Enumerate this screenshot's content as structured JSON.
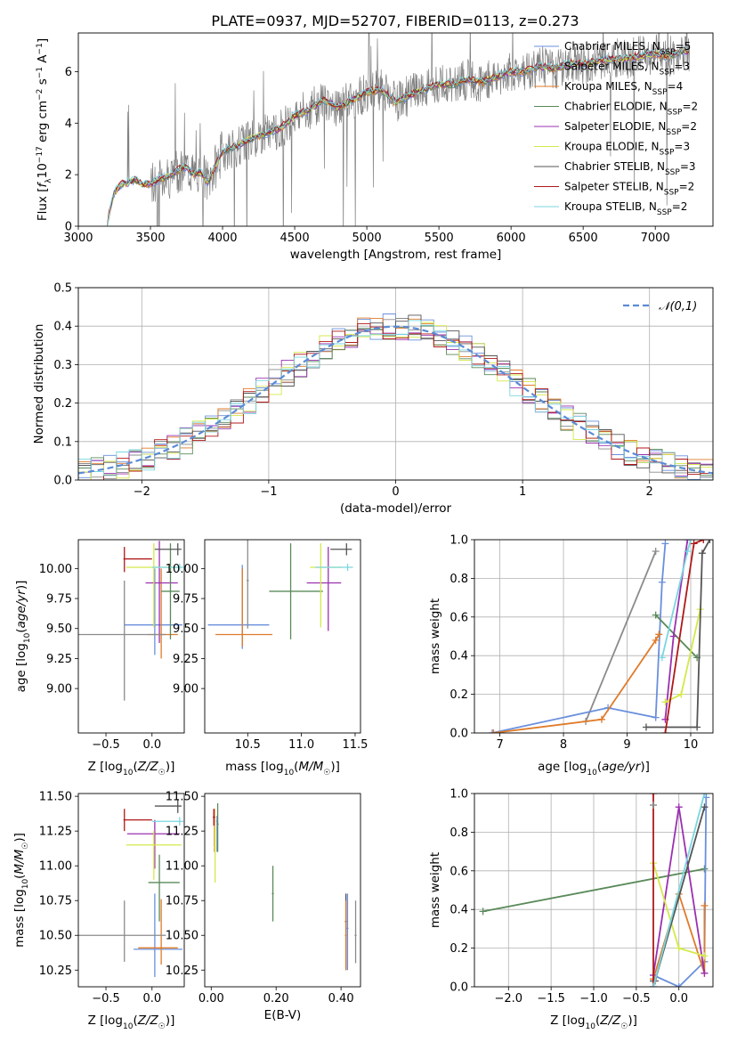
{
  "figure_title": "PLATE=0937, MJD=52707, FIBERID=0113, z=0.273",
  "models": [
    {
      "name": "Chabrier MILES",
      "nssp": "5",
      "color": "#6a8fdc"
    },
    {
      "name": "Salpeter MILES",
      "nssp": "3",
      "color": "#8b8b8b"
    },
    {
      "name": "Kroupa MILES",
      "nssp": "4",
      "color": "#e07b2a"
    },
    {
      "name": "Chabrier ELODIE",
      "nssp": "2",
      "color": "#5a8a5a"
    },
    {
      "name": "Salpeter ELODIE",
      "nssp": "2",
      "color": "#9b30b0"
    },
    {
      "name": "Kroupa ELODIE",
      "nssp": "3",
      "color": "#d4e84a"
    },
    {
      "name": "Chabrier STELIB",
      "nssp": "3",
      "color": "#555555"
    },
    {
      "name": "Salpeter STELIB",
      "nssp": "2",
      "color": "#b01818"
    },
    {
      "name": "Kroupa STELIB",
      "nssp": "2",
      "color": "#7ad6e0"
    }
  ],
  "chart_data": [
    {
      "id": "spectrum",
      "type": "line",
      "xlabel": "wavelength [Angstrom, rest frame]",
      "ylabel": "Flux [f_λ 10^-17 erg cm^-2 s^-1 A^-1]",
      "xlim": [
        3000,
        7400
      ],
      "ylim": [
        0,
        7.5
      ],
      "xticks": [
        3000,
        3500,
        4000,
        4500,
        5000,
        5500,
        6000,
        6500,
        7000
      ],
      "yticks": [
        0,
        2,
        4,
        6
      ],
      "data_color": "#808080",
      "model_curve": {
        "x": [
          3200,
          3250,
          3300,
          3350,
          3400,
          3450,
          3500,
          3550,
          3600,
          3650,
          3700,
          3750,
          3800,
          3850,
          3900,
          3950,
          4000,
          4100,
          4200,
          4300,
          4400,
          4500,
          4600,
          4700,
          4800,
          4900,
          5000,
          5100,
          5200,
          5300,
          5400,
          5500,
          5600,
          5700,
          5800,
          5900,
          6000,
          6100,
          6200,
          6300,
          6400,
          6500,
          6600,
          6700,
          6800,
          6900,
          7000,
          7100,
          7200
        ],
        "y": [
          0.2,
          1.3,
          1.65,
          1.7,
          1.8,
          1.6,
          1.65,
          1.8,
          1.9,
          2.0,
          2.2,
          2.3,
          2.0,
          2.1,
          1.7,
          2.3,
          2.9,
          3.1,
          3.4,
          3.6,
          3.8,
          4.3,
          4.5,
          4.9,
          4.6,
          4.9,
          5.2,
          5.3,
          4.8,
          5.1,
          5.3,
          5.5,
          5.5,
          5.7,
          5.6,
          5.8,
          6.0,
          6.0,
          6.2,
          6.1,
          6.3,
          6.3,
          6.4,
          6.5,
          6.5,
          6.6,
          6.7,
          6.6,
          6.8
        ]
      },
      "grid": false,
      "legend": "right"
    },
    {
      "id": "residuals",
      "type": "line",
      "xlabel": "(data-model)/error",
      "ylabel": "Normed distribution",
      "xlim": [
        -2.5,
        2.5
      ],
      "ylim": [
        0,
        0.5
      ],
      "xticks": [
        -2,
        -1,
        0,
        1,
        2
      ],
      "yticks": [
        0.0,
        0.1,
        0.2,
        0.3,
        0.4,
        0.5
      ],
      "legend_label": "𝒩(0,1)",
      "gaussian_color": "#5b8bd6",
      "grid": true,
      "legend": "top-right"
    },
    {
      "id": "age_vs_z",
      "type": "scatter",
      "xlabel": "Z [log10(Z/Z☉)]",
      "ylabel": "age [log10(age/yr)]",
      "xlim": [
        -0.8,
        0.35
      ],
      "ylim": [
        8.63,
        10.24
      ],
      "xticks": [
        -0.5,
        0.0
      ],
      "yticks": [
        9.0,
        9.25,
        9.5,
        9.75,
        10.0
      ],
      "points": [
        {
          "m": 0,
          "x": 0.03,
          "y": 9.53,
          "xe": [
            0.33,
            0.3
          ],
          "ye": [
            0.25,
            0.47
          ]
        },
        {
          "m": 2,
          "x": 0.1,
          "y": 9.45,
          "xe": [
            0.15,
            0.18
          ],
          "ye": [
            0.2,
            0.55
          ]
        },
        {
          "m": 4,
          "x": 0.08,
          "y": 9.88,
          "xe": [
            0.15,
            0.2
          ],
          "ye": [
            0.5,
            0.35
          ]
        },
        {
          "m": 5,
          "x": 0.02,
          "y": 10.01,
          "xe": [
            0.3,
            0.3
          ],
          "ye": [
            0.5,
            0.2
          ]
        },
        {
          "m": 3,
          "x": 0.2,
          "y": 9.81,
          "xe": [
            0.1,
            0.1
          ],
          "ye": [
            0.4,
            0.4
          ]
        },
        {
          "m": 6,
          "x": 0.28,
          "y": 10.16,
          "xe": [
            0.25,
            0.04
          ],
          "ye": [
            0.05,
            0.05
          ]
        },
        {
          "m": 7,
          "x": -0.3,
          "y": 10.08,
          "xe": [
            0.01,
            0.3
          ],
          "ye": [
            0.11,
            0.1
          ]
        },
        {
          "m": 8,
          "x": 0.3,
          "y": 10.01,
          "xe": [
            0.3,
            0.04
          ],
          "ye": [
            0.03,
            0.03
          ]
        },
        {
          "m": 1,
          "x": -0.3,
          "y": 9.45,
          "xe": [
            0.5,
            0.45
          ],
          "ye": [
            0.55,
            0.45
          ]
        }
      ]
    },
    {
      "id": "age_vs_mass",
      "type": "scatter",
      "xlabel": "mass [log10(M/M☉)]",
      "ylabel": "",
      "xlim": [
        10.1,
        11.55
      ],
      "ylim": [
        8.63,
        10.24
      ],
      "xticks": [
        10.5,
        11.0,
        11.5
      ],
      "yticks": [
        9.0,
        9.25,
        9.5,
        9.75,
        10.0
      ],
      "points": [
        {
          "m": 0,
          "x": 10.45,
          "y": 9.53,
          "xe": [
            0.32,
            0.25
          ],
          "ye": [
            0.2,
            0.5
          ]
        },
        {
          "m": 2,
          "x": 10.45,
          "y": 9.45,
          "xe": [
            0.25,
            0.28
          ],
          "ye": [
            0.1,
            0.55
          ]
        },
        {
          "m": 3,
          "x": 10.9,
          "y": 9.81,
          "xe": [
            0.2,
            0.3
          ],
          "ye": [
            0.4,
            0.4
          ]
        },
        {
          "m": 4,
          "x": 11.25,
          "y": 9.88,
          "xe": [
            0.2,
            0.12
          ],
          "ye": [
            0.4,
            0.3
          ]
        },
        {
          "m": 5,
          "x": 11.18,
          "y": 10.01,
          "xe": [
            0.1,
            0.2
          ],
          "ye": [
            0.5,
            0.2
          ]
        },
        {
          "m": 6,
          "x": 11.42,
          "y": 10.16,
          "xe": [
            0.15,
            0.05
          ],
          "ye": [
            0.05,
            0.05
          ]
        },
        {
          "m": 8,
          "x": 11.43,
          "y": 10.01,
          "xe": [
            0.3,
            0.05
          ],
          "ye": [
            0.03,
            0.03
          ]
        },
        {
          "m": 1,
          "x": 10.5,
          "y": 9.9,
          "xe": [
            0.01,
            0.01
          ],
          "ye": [
            0.4,
            1.1
          ]
        }
      ]
    },
    {
      "id": "weight_vs_age",
      "type": "line",
      "xlabel": "age [log10(age/yr)]",
      "ylabel": "mass weight",
      "xlim": [
        6.6,
        10.35
      ],
      "ylim": [
        0,
        1.0
      ],
      "xticks": [
        7,
        8,
        9,
        10
      ],
      "yticks": [
        0.0,
        0.2,
        0.4,
        0.6,
        0.8,
        1.0
      ],
      "series": [
        {
          "m": 1,
          "x": [
            8.35,
            9.45
          ],
          "y": [
            0.06,
            0.94
          ]
        },
        {
          "m": 0,
          "x": [
            6.88,
            8.7,
            9.45,
            9.55,
            9.6
          ],
          "y": [
            0.0,
            0.13,
            0.08,
            0.78,
            0.98
          ]
        },
        {
          "m": 2,
          "x": [
            6.9,
            8.6,
            9.45,
            9.5
          ],
          "y": [
            0.0,
            0.07,
            0.48,
            0.51
          ]
        },
        {
          "m": 3,
          "x": [
            9.45,
            10.1
          ],
          "y": [
            0.61,
            0.39
          ]
        },
        {
          "m": 4,
          "x": [
            9.6,
            9.73,
            9.95
          ],
          "y": [
            0.07,
            0.5,
            1.0
          ]
        },
        {
          "m": 5,
          "x": [
            9.6,
            9.85,
            10.15
          ],
          "y": [
            0.16,
            0.2,
            0.64
          ]
        },
        {
          "m": 6,
          "x": [
            9.3,
            10.1,
            10.18,
            10.3
          ],
          "y": [
            0.03,
            0.03,
            0.93,
            1.0
          ]
        },
        {
          "m": 7,
          "x": [
            9.6,
            10.05,
            10.2
          ],
          "y": [
            0.0,
            0.98,
            1.0
          ]
        },
        {
          "m": 8,
          "x": [
            9.55,
            9.95,
            10.0
          ],
          "y": [
            0.39,
            0.94,
            1.0
          ]
        }
      ],
      "grid": true
    },
    {
      "id": "mass_vs_z",
      "type": "scatter",
      "xlabel": "Z [log10(Z/Z☉)]",
      "ylabel": "mass [log10(M/M☉)]",
      "xlim": [
        -0.8,
        0.35
      ],
      "ylim": [
        10.13,
        11.52
      ],
      "xticks": [
        -0.5,
        0.0
      ],
      "yticks": [
        10.25,
        10.5,
        10.75,
        11.0,
        11.25,
        11.5
      ],
      "points": [
        {
          "m": 0,
          "x": 0.03,
          "y": 10.4,
          "xe": [
            0.23,
            0.3
          ],
          "ye": [
            0.2,
            0.4
          ]
        },
        {
          "m": 2,
          "x": 0.1,
          "y": 10.41,
          "xe": [
            0.25,
            0.18
          ],
          "ye": [
            0.12,
            0.35
          ]
        },
        {
          "m": 1,
          "x": -0.3,
          "y": 10.5,
          "xe": [
            0.5,
            0.45
          ],
          "ye": [
            0.19,
            0.25
          ]
        },
        {
          "m": 3,
          "x": 0.08,
          "y": 10.88,
          "xe": [
            0.12,
            0.22
          ],
          "ye": [
            0.28,
            0.2
          ]
        },
        {
          "m": 4,
          "x": 0.03,
          "y": 11.23,
          "xe": [
            0.3,
            0.27
          ],
          "ye": [
            0.25,
            0.1
          ]
        },
        {
          "m": 5,
          "x": 0.02,
          "y": 11.15,
          "xe": [
            0.3,
            0.3
          ],
          "ye": [
            0.25,
            0.1
          ]
        },
        {
          "m": 6,
          "x": 0.28,
          "y": 11.43,
          "xe": [
            0.25,
            0.04
          ],
          "ye": [
            0.05,
            0.05
          ]
        },
        {
          "m": 7,
          "x": -0.3,
          "y": 11.33,
          "xe": [
            0.01,
            0.3
          ],
          "ye": [
            0.08,
            0.08
          ]
        },
        {
          "m": 8,
          "x": 0.3,
          "y": 11.32,
          "xe": [
            0.3,
            0.04
          ],
          "ye": [
            0.03,
            0.03
          ]
        }
      ]
    },
    {
      "id": "mass_vs_ebv",
      "type": "scatter",
      "xlabel": "E(B-V)",
      "ylabel": "",
      "xlim": [
        -0.02,
        0.46
      ],
      "ylim": [
        10.13,
        11.52
      ],
      "xticks": [
        0.0,
        0.2,
        0.4
      ],
      "yticks": [
        10.25,
        10.5,
        10.75,
        11.0,
        11.25,
        11.5
      ],
      "points": [
        {
          "m": 0,
          "x": 0.018,
          "y": 11.32,
          "xe": [
            0.003,
            0.003
          ],
          "ye": [
            0.22,
            0.04
          ]
        },
        {
          "m": 2,
          "x": 0.01,
          "y": 11.35,
          "xe": [
            0.003,
            0.003
          ],
          "ye": [
            0.25,
            0.06
          ]
        },
        {
          "m": 3,
          "x": 0.02,
          "y": 11.3,
          "xe": [
            0.003,
            0.003
          ],
          "ye": [
            0.2,
            0.15
          ]
        },
        {
          "m": 5,
          "x": 0.012,
          "y": 11.13,
          "xe": [
            0.003,
            0.003
          ],
          "ye": [
            0.25,
            0.15
          ]
        },
        {
          "m": 7,
          "x": 0.008,
          "y": 11.35,
          "xe": [
            0.003,
            0.003
          ],
          "ye": [
            0.06,
            0.06
          ]
        },
        {
          "m": 3,
          "x": 0.19,
          "y": 10.8,
          "xe": [
            0.003,
            0.003
          ],
          "ye": [
            0.2,
            0.2
          ]
        },
        {
          "m": 6,
          "x": 0.415,
          "y": 10.6,
          "xe": [
            0.003,
            0.003
          ],
          "ye": [
            0.35,
            0.2
          ]
        },
        {
          "m": 0,
          "x": 0.42,
          "y": 10.55,
          "xe": [
            0.003,
            0.003
          ],
          "ye": [
            0.3,
            0.25
          ]
        },
        {
          "m": 2,
          "x": 0.415,
          "y": 10.5,
          "xe": [
            0.003,
            0.003
          ],
          "ye": [
            0.25,
            0.25
          ]
        },
        {
          "m": 1,
          "x": 0.445,
          "y": 10.5,
          "xe": [
            0.003,
            0.003
          ],
          "ye": [
            0.2,
            0.25
          ]
        }
      ]
    },
    {
      "id": "weight_vs_z",
      "type": "line",
      "xlabel": "Z [log10(Z/Z☉)]",
      "ylabel": "mass weight",
      "xlim": [
        -2.4,
        0.4
      ],
      "ylim": [
        0,
        1.0
      ],
      "xticks": [
        -2.0,
        -1.5,
        -1.0,
        -0.5,
        0.0
      ],
      "yticks": [
        0.0,
        0.2,
        0.4,
        0.6,
        0.8,
        1.0
      ],
      "series": [
        {
          "m": 3,
          "x": [
            -2.3,
            0.3
          ],
          "y": [
            0.39,
            0.61
          ]
        },
        {
          "m": 0,
          "x": [
            -0.3,
            0.0,
            0.3,
            0.32
          ],
          "y": [
            0.06,
            0.0,
            0.13,
            0.98
          ]
        },
        {
          "m": 2,
          "x": [
            -0.3,
            0.0,
            0.3,
            0.3
          ],
          "y": [
            0.04,
            0.48,
            0.07,
            0.42
          ]
        },
        {
          "m": 4,
          "x": [
            -0.3,
            0.0,
            0.3
          ],
          "y": [
            0.06,
            0.93,
            0.07
          ]
        },
        {
          "m": 5,
          "x": [
            -0.3,
            0.0,
            0.3
          ],
          "y": [
            0.64,
            0.2,
            0.16
          ]
        },
        {
          "m": 6,
          "x": [
            -0.3,
            -0.28,
            0.3
          ],
          "y": [
            0.03,
            0.03,
            0.93
          ]
        },
        {
          "m": 7,
          "x": [
            -0.3,
            -0.3
          ],
          "y": [
            0.0,
            1.0
          ]
        },
        {
          "m": 8,
          "x": [
            -0.3,
            0.3
          ],
          "y": [
            0.0,
            1.0
          ]
        },
        {
          "m": 1,
          "x": [
            -0.3,
            -0.3
          ],
          "y": [
            0.94,
            0.94
          ]
        }
      ],
      "grid": true
    }
  ]
}
